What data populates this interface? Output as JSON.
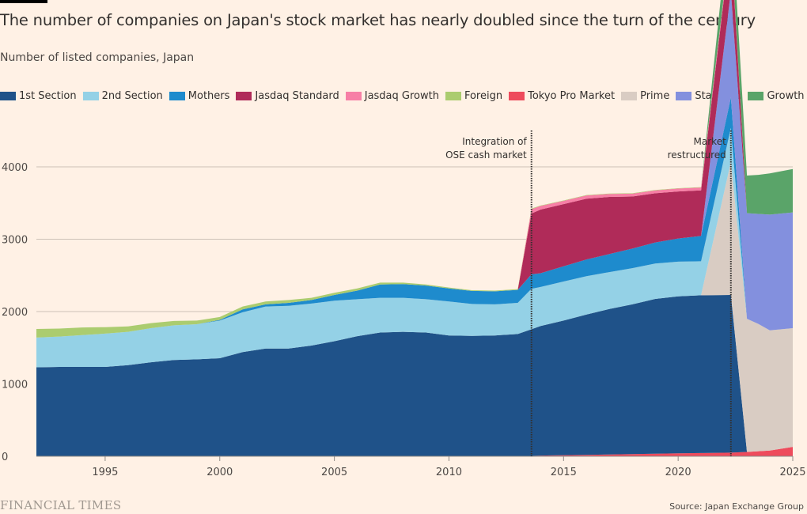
{
  "header": {
    "title": "The number of companies on Japan's stock market has nearly doubled since the turn of the century",
    "subtitle": "Number of listed companies, Japan"
  },
  "footer": {
    "brand": "FINANCIAL TIMES",
    "source": "Source: Japan Exchange Group"
  },
  "chart_data": {
    "type": "area",
    "title": "The number of companies on Japan's stock market has nearly doubled since the turn of the century",
    "subtitle": "Number of listed companies, Japan",
    "xlabel": "",
    "ylabel": "",
    "xlim": [
      1992,
      2025
    ],
    "ylim": [
      0,
      4000
    ],
    "grid": true,
    "legend_placement": "top",
    "yticks": [
      0,
      1000,
      2000,
      3000,
      4000
    ],
    "xticks": [
      1995,
      2000,
      2005,
      2010,
      2015,
      2020,
      2025
    ],
    "annotations": [
      {
        "x": 2013.6,
        "label_lines": [
          "Integration of",
          "OSE cash market"
        ]
      },
      {
        "x": 2022.3,
        "label_lines": [
          "Market",
          "restructured"
        ]
      }
    ],
    "legend": [
      {
        "name": "1st Section",
        "color": "#1f5289"
      },
      {
        "name": "2nd Section",
        "color": "#94d1e6"
      },
      {
        "name": "Mothers",
        "color": "#1e8bcd"
      },
      {
        "name": "Jasdaq Standard",
        "color": "#b02b59"
      },
      {
        "name": "Jasdaq Growth",
        "color": "#f77fa6"
      },
      {
        "name": "Foreign",
        "color": "#abcc6f"
      },
      {
        "name": "Tokyo Pro Market",
        "color": "#ee4b5c"
      },
      {
        "name": "Prime",
        "color": "#d9ccc3"
      },
      {
        "name": "Standard",
        "color": "#8390de"
      },
      {
        "name": "Growth",
        "color": "#5aa469"
      }
    ],
    "x": [
      1992,
      1993,
      1994,
      1995,
      1996,
      1997,
      1998,
      1999,
      2000,
      2001,
      2002,
      2003,
      2004,
      2005,
      2006,
      2007,
      2008,
      2009,
      2010,
      2011,
      2012,
      2013,
      2013.6,
      2014,
      2015,
      2016,
      2017,
      2018,
      2019,
      2020,
      2021,
      2022.3,
      2023,
      2023.5,
      2024,
      2025
    ],
    "series": [
      {
        "name": "Tokyo Pro Market",
        "values": [
          0,
          0,
          0,
          0,
          0,
          0,
          0,
          0,
          0,
          0,
          0,
          0,
          0,
          0,
          0,
          0,
          0,
          0,
          0,
          0,
          0,
          0,
          5,
          10,
          15,
          20,
          25,
          30,
          35,
          40,
          45,
          50,
          60,
          70,
          80,
          130
        ]
      },
      {
        "name": "1st Section",
        "values": [
          1230,
          1235,
          1235,
          1235,
          1260,
          1300,
          1330,
          1340,
          1355,
          1440,
          1490,
          1490,
          1530,
          1590,
          1660,
          1710,
          1720,
          1710,
          1670,
          1665,
          1670,
          1690,
          1750,
          1790,
          1860,
          1940,
          2010,
          2070,
          2140,
          2170,
          2180,
          2180,
          0,
          0,
          0,
          0
        ]
      },
      {
        "name": "Prime",
        "values": [
          0,
          0,
          0,
          0,
          0,
          0,
          0,
          0,
          0,
          0,
          0,
          0,
          0,
          0,
          0,
          0,
          0,
          0,
          0,
          0,
          0,
          0,
          0,
          0,
          0,
          0,
          0,
          0,
          0,
          0,
          0,
          1840,
          1840,
          1760,
          1660,
          1640
        ]
      },
      {
        "name": "2nd Section",
        "values": [
          410,
          420,
          440,
          460,
          460,
          470,
          480,
          485,
          520,
          550,
          580,
          590,
          580,
          560,
          510,
          480,
          470,
          460,
          470,
          440,
          430,
          430,
          560,
          540,
          540,
          530,
          510,
          500,
          490,
          480,
          470,
          470,
          0,
          0,
          0,
          0
        ]
      },
      {
        "name": "Mothers",
        "values": [
          0,
          0,
          0,
          0,
          0,
          0,
          0,
          0,
          10,
          40,
          30,
          40,
          50,
          80,
          120,
          185,
          190,
          190,
          180,
          180,
          180,
          180,
          200,
          190,
          210,
          230,
          250,
          270,
          290,
          320,
          350,
          420,
          0,
          0,
          0,
          0
        ]
      },
      {
        "name": "Standard",
        "values": [
          0,
          0,
          0,
          0,
          0,
          0,
          0,
          0,
          0,
          0,
          0,
          0,
          0,
          0,
          0,
          0,
          0,
          0,
          0,
          0,
          0,
          0,
          0,
          0,
          0,
          0,
          0,
          0,
          0,
          0,
          0,
          1470,
          1460,
          1520,
          1600,
          1600
        ]
      },
      {
        "name": "Jasdaq Standard",
        "values": [
          0,
          0,
          0,
          0,
          0,
          0,
          0,
          0,
          0,
          0,
          0,
          0,
          0,
          0,
          0,
          0,
          0,
          0,
          0,
          0,
          0,
          0,
          840,
          880,
          860,
          840,
          790,
          720,
          680,
          650,
          630,
          700,
          0,
          0,
          0,
          0
        ]
      },
      {
        "name": "Jasdaq Growth",
        "values": [
          0,
          0,
          0,
          0,
          0,
          0,
          0,
          0,
          0,
          0,
          0,
          0,
          0,
          0,
          0,
          0,
          0,
          0,
          0,
          0,
          0,
          0,
          60,
          50,
          45,
          45,
          40,
          40,
          40,
          40,
          40,
          40,
          0,
          0,
          0,
          0
        ]
      },
      {
        "name": "Foreign",
        "values": [
          120,
          110,
          105,
          90,
          75,
          70,
          60,
          50,
          40,
          40,
          40,
          40,
          30,
          30,
          30,
          25,
          20,
          15,
          12,
          10,
          10,
          10,
          8,
          6,
          6,
          6,
          6,
          5,
          5,
          5,
          5,
          5,
          0,
          0,
          0,
          0
        ]
      },
      {
        "name": "Growth",
        "values": [
          0,
          0,
          0,
          0,
          0,
          0,
          0,
          0,
          0,
          0,
          0,
          0,
          0,
          0,
          0,
          0,
          0,
          0,
          0,
          0,
          0,
          0,
          0,
          0,
          0,
          0,
          0,
          0,
          0,
          0,
          0,
          490,
          520,
          540,
          570,
          600
        ]
      }
    ]
  }
}
